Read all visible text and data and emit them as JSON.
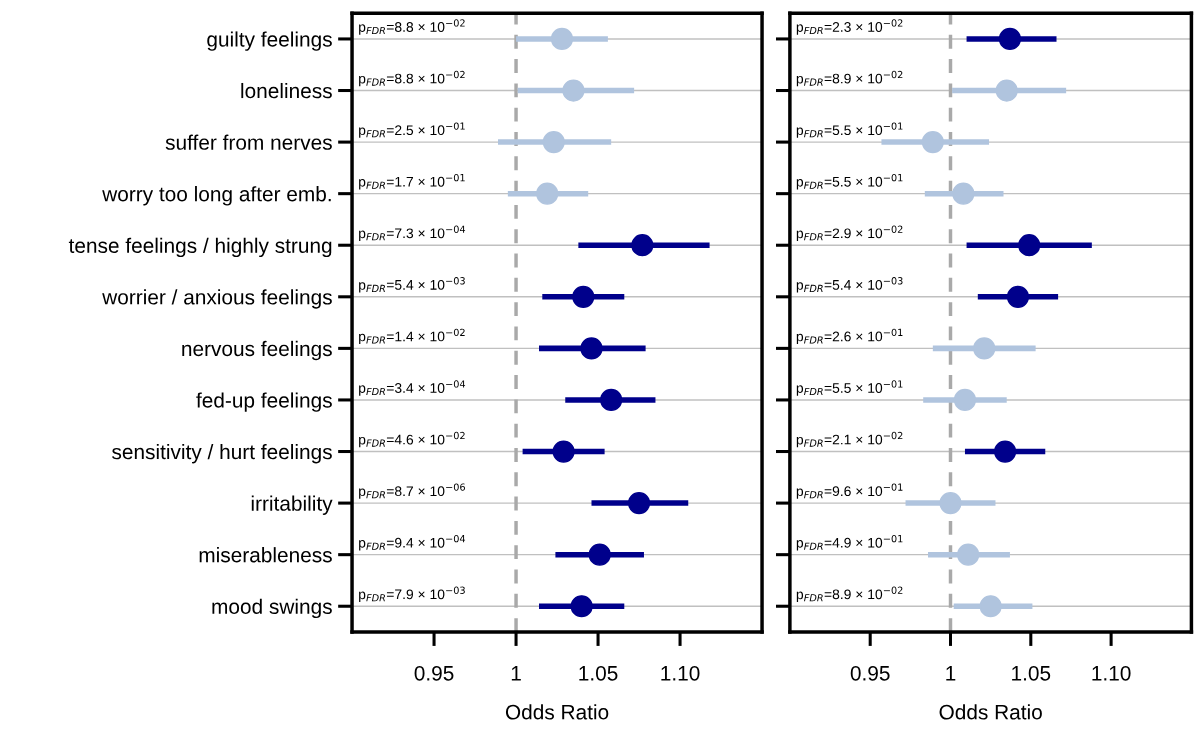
{
  "chart_data": [
    {
      "type": "scatter",
      "orientation": "horizontal",
      "xlabel": "Odds Ratio",
      "categories": [
        "guilty feelings",
        "loneliness",
        "suffer from nerves",
        "worry too long after emb.",
        "tense feelings / highly strung",
        "worrier / anxious feelings",
        "nervous feelings",
        "fed-up feelings",
        "sensitivity / hurt feelings",
        "irritability",
        "miserableness",
        "mood swings"
      ],
      "values": [
        1.028,
        1.035,
        1.023,
        1.019,
        1.077,
        1.041,
        1.046,
        1.058,
        1.029,
        1.075,
        1.051,
        1.04
      ],
      "errors": [
        [
          1.0,
          1.056
        ],
        [
          1.001,
          1.072
        ],
        [
          0.989,
          1.058
        ],
        [
          0.995,
          1.044
        ],
        [
          1.038,
          1.118
        ],
        [
          1.016,
          1.066
        ],
        [
          1.014,
          1.079
        ],
        [
          1.03,
          1.085
        ],
        [
          1.004,
          1.054
        ],
        [
          1.046,
          1.105
        ],
        [
          1.024,
          1.078
        ],
        [
          1.014,
          1.066
        ]
      ],
      "colors": [
        "#b0c4de",
        "#b0c4de",
        "#b0c4de",
        "#b0c4de",
        "#00008b",
        "#00008b",
        "#00008b",
        "#00008b",
        "#00008b",
        "#00008b",
        "#00008b",
        "#00008b"
      ],
      "annotations": [
        "p$_{FDR}$=8.8 × 10$^{−02}$",
        "p$_{FDR}$=8.8 × 10$^{−02}$",
        "p$_{FDR}$=2.5 × 10$^{−01}$",
        "p$_{FDR}$=1.7 × 10$^{−01}$",
        "p$_{FDR}$=7.3 × 10$^{−04}$",
        "p$_{FDR}$=5.4 × 10$^{−03}$",
        "p$_{FDR}$=1.4 × 10$^{−02}$",
        "p$_{FDR}$=3.4 × 10$^{−04}$",
        "p$_{FDR}$=4.6 × 10$^{−02}$",
        "p$_{FDR}$=8.7 × 10$^{−06}$",
        "p$_{FDR}$=9.4 × 10$^{−04}$",
        "p$_{FDR}$=7.9 × 10$^{−03}$"
      ],
      "xlim": [
        0.9,
        1.15
      ],
      "xticks": [
        0.95,
        1,
        1.05,
        {
          "value": 1.1,
          "label": "1.10"
        }
      ],
      "ref_lines": [
        {
          "axis": "x",
          "value": 1,
          "color": "#a9a9a9",
          "line_style": "dashed"
        }
      ],
      "grid": "y",
      "marker": "circle"
    },
    {
      "type": "scatter",
      "orientation": "horizontal",
      "xlabel": "Odds Ratio",
      "categories": [
        null,
        null,
        null,
        null,
        null,
        null,
        null,
        null,
        null,
        null,
        null,
        null
      ],
      "values": [
        1.037,
        1.035,
        0.989,
        1.008,
        1.049,
        1.042,
        1.021,
        1.009,
        1.034,
        1.0,
        1.011,
        1.025
      ],
      "errors": [
        [
          1.01,
          1.066
        ],
        [
          1.001,
          1.072
        ],
        [
          0.957,
          1.024
        ],
        [
          0.984,
          1.033
        ],
        [
          1.01,
          1.088
        ],
        [
          1.017,
          1.067
        ],
        [
          0.989,
          1.053
        ],
        [
          0.983,
          1.035
        ],
        [
          1.009,
          1.059
        ],
        [
          0.972,
          1.028
        ],
        [
          0.986,
          1.037
        ],
        [
          1.002,
          1.051
        ]
      ],
      "colors": [
        "#00008b",
        "#b0c4de",
        "#b0c4de",
        "#b0c4de",
        "#00008b",
        "#00008b",
        "#b0c4de",
        "#b0c4de",
        "#00008b",
        "#b0c4de",
        "#b0c4de",
        "#b0c4de"
      ],
      "annotations": [
        "p$_{FDR}$=2.3 × 10$^{−02}$",
        "p$_{FDR}$=8.9 × 10$^{−02}$",
        "p$_{FDR}$=5.5 × 10$^{−01}$",
        "p$_{FDR}$=5.5 × 10$^{−01}$",
        "p$_{FDR}$=2.9 × 10$^{−02}$",
        "p$_{FDR}$=5.4 × 10$^{−03}$",
        "p$_{FDR}$=2.6 × 10$^{−01}$",
        "p$_{FDR}$=5.5 × 10$^{−01}$",
        "p$_{FDR}$=2.1 × 10$^{−02}$",
        "p$_{FDR}$=9.6 × 10$^{−01}$",
        "p$_{FDR}$=4.9 × 10$^{−01}$",
        "p$_{FDR}$=8.9 × 10$^{−02}$"
      ],
      "xlim": [
        0.9,
        1.15
      ],
      "xticks": [
        0.95,
        1,
        1.05,
        {
          "value": 1.1,
          "label": "1.10"
        }
      ],
      "ref_lines": [
        {
          "axis": "x",
          "value": 1,
          "color": "#a9a9a9",
          "line_style": "dashed"
        }
      ],
      "grid": "y",
      "marker": "circle"
    }
  ]
}
